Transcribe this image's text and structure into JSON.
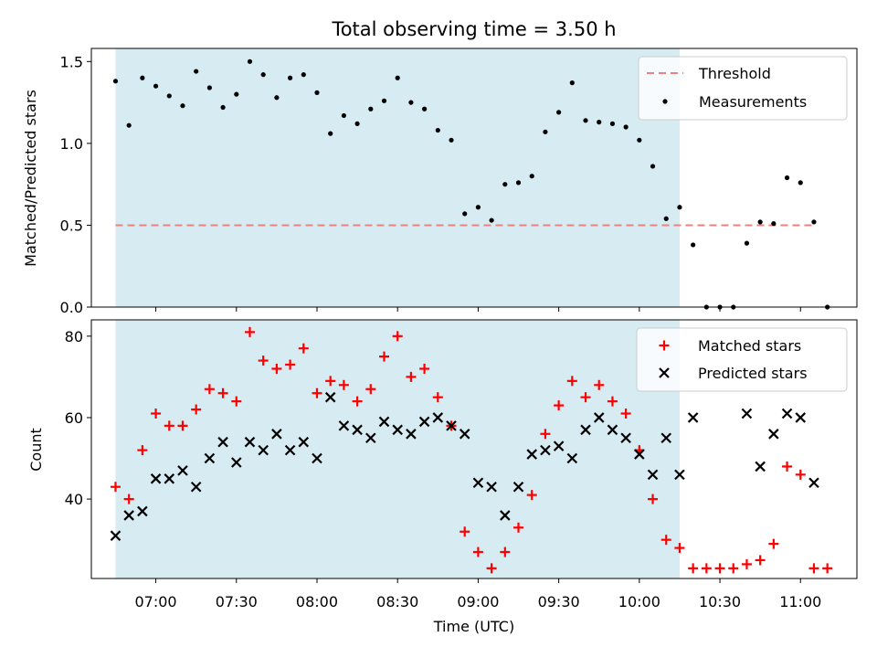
{
  "title": "Total observing time = 3.50 h",
  "chart_data": [
    {
      "type": "scatter",
      "ylabel": "Matched/Predicted stars",
      "ylim": [
        0,
        1.58
      ],
      "yticks": [
        "0.0",
        "0.5",
        "1.0",
        "1.5"
      ],
      "legend_position": "upper right",
      "shaded_span": [
        "06:45",
        "10:15"
      ],
      "threshold": {
        "name": "Threshold",
        "value": 0.5,
        "x_range": [
          "06:45",
          "11:05"
        ],
        "color": "#f08080"
      },
      "series": [
        {
          "name": "Measurements",
          "color": "#000000",
          "points": [
            [
              "06:45",
              1.38
            ],
            [
              "06:50",
              1.11
            ],
            [
              "06:55",
              1.4
            ],
            [
              "07:00",
              1.35
            ],
            [
              "07:05",
              1.29
            ],
            [
              "07:10",
              1.23
            ],
            [
              "07:15",
              1.44
            ],
            [
              "07:20",
              1.34
            ],
            [
              "07:25",
              1.22
            ],
            [
              "07:30",
              1.3
            ],
            [
              "07:35",
              1.5
            ],
            [
              "07:40",
              1.42
            ],
            [
              "07:45",
              1.28
            ],
            [
              "07:50",
              1.4
            ],
            [
              "07:55",
              1.42
            ],
            [
              "08:00",
              1.31
            ],
            [
              "08:05",
              1.06
            ],
            [
              "08:10",
              1.17
            ],
            [
              "08:15",
              1.12
            ],
            [
              "08:20",
              1.21
            ],
            [
              "08:25",
              1.26
            ],
            [
              "08:30",
              1.4
            ],
            [
              "08:35",
              1.25
            ],
            [
              "08:40",
              1.21
            ],
            [
              "08:45",
              1.08
            ],
            [
              "08:50",
              1.02
            ],
            [
              "08:55",
              0.57
            ],
            [
              "09:00",
              0.61
            ],
            [
              "09:05",
              0.53
            ],
            [
              "09:10",
              0.75
            ],
            [
              "09:15",
              0.76
            ],
            [
              "09:20",
              0.8
            ],
            [
              "09:25",
              1.07
            ],
            [
              "09:30",
              1.19
            ],
            [
              "09:35",
              1.37
            ],
            [
              "09:40",
              1.14
            ],
            [
              "09:45",
              1.13
            ],
            [
              "09:50",
              1.12
            ],
            [
              "09:55",
              1.1
            ],
            [
              "10:00",
              1.02
            ],
            [
              "10:05",
              0.86
            ],
            [
              "10:10",
              0.54
            ],
            [
              "10:15",
              0.61
            ],
            [
              "10:20",
              0.38
            ],
            [
              "10:25",
              0.0
            ],
            [
              "10:30",
              0.0
            ],
            [
              "10:35",
              0.0
            ],
            [
              "10:40",
              0.39
            ],
            [
              "10:45",
              0.52
            ],
            [
              "10:50",
              0.51
            ],
            [
              "10:55",
              0.79
            ],
            [
              "11:00",
              0.76
            ],
            [
              "11:05",
              0.52
            ],
            [
              "11:10",
              0.0
            ]
          ]
        }
      ]
    },
    {
      "type": "scatter",
      "xlabel": "Time (UTC)",
      "ylabel": "Count",
      "ylim": [
        20.5,
        84
      ],
      "yticks": [
        "40",
        "60",
        "80"
      ],
      "xticks": [
        "07:00",
        "07:30",
        "08:00",
        "08:30",
        "09:00",
        "09:30",
        "10:00",
        "10:30",
        "11:00"
      ],
      "xlim": [
        "06:36",
        "11:21"
      ],
      "legend_position": "upper right",
      "series": [
        {
          "name": "Matched stars",
          "color": "#ff0000",
          "marker": "+",
          "points": [
            [
              "06:45",
              43
            ],
            [
              "06:50",
              40
            ],
            [
              "06:55",
              52
            ],
            [
              "07:00",
              61
            ],
            [
              "07:05",
              58
            ],
            [
              "07:10",
              58
            ],
            [
              "07:15",
              62
            ],
            [
              "07:20",
              67
            ],
            [
              "07:25",
              66
            ],
            [
              "07:30",
              64
            ],
            [
              "07:35",
              81
            ],
            [
              "07:40",
              74
            ],
            [
              "07:45",
              72
            ],
            [
              "07:50",
              73
            ],
            [
              "07:55",
              77
            ],
            [
              "08:00",
              66
            ],
            [
              "08:05",
              69
            ],
            [
              "08:10",
              68
            ],
            [
              "08:15",
              64
            ],
            [
              "08:20",
              67
            ],
            [
              "08:25",
              75
            ],
            [
              "08:30",
              80
            ],
            [
              "08:35",
              70
            ],
            [
              "08:40",
              72
            ],
            [
              "08:45",
              65
            ],
            [
              "08:50",
              58
            ],
            [
              "08:55",
              32
            ],
            [
              "09:00",
              27
            ],
            [
              "09:05",
              23
            ],
            [
              "09:10",
              27
            ],
            [
              "09:15",
              33
            ],
            [
              "09:20",
              41
            ],
            [
              "09:25",
              56
            ],
            [
              "09:30",
              63
            ],
            [
              "09:35",
              69
            ],
            [
              "09:40",
              65
            ],
            [
              "09:45",
              68
            ],
            [
              "09:50",
              64
            ],
            [
              "09:55",
              61
            ],
            [
              "10:00",
              52
            ],
            [
              "10:05",
              40
            ],
            [
              "10:10",
              30
            ],
            [
              "10:15",
              28
            ],
            [
              "10:20",
              23
            ],
            [
              "10:25",
              23
            ],
            [
              "10:30",
              23
            ],
            [
              "10:35",
              23
            ],
            [
              "10:40",
              24
            ],
            [
              "10:45",
              25
            ],
            [
              "10:50",
              29
            ],
            [
              "10:55",
              48
            ],
            [
              "11:00",
              46
            ],
            [
              "11:05",
              23
            ],
            [
              "11:10",
              23
            ]
          ]
        },
        {
          "name": "Predicted stars",
          "color": "#000000",
          "marker": "x",
          "points": [
            [
              "06:45",
              31
            ],
            [
              "06:50",
              36
            ],
            [
              "06:55",
              37
            ],
            [
              "07:00",
              45
            ],
            [
              "07:05",
              45
            ],
            [
              "07:10",
              47
            ],
            [
              "07:15",
              43
            ],
            [
              "07:20",
              50
            ],
            [
              "07:25",
              54
            ],
            [
              "07:30",
              49
            ],
            [
              "07:35",
              54
            ],
            [
              "07:40",
              52
            ],
            [
              "07:45",
              56
            ],
            [
              "07:50",
              52
            ],
            [
              "07:55",
              54
            ],
            [
              "08:00",
              50
            ],
            [
              "08:05",
              65
            ],
            [
              "08:10",
              58
            ],
            [
              "08:15",
              57
            ],
            [
              "08:20",
              55
            ],
            [
              "08:25",
              59
            ],
            [
              "08:30",
              57
            ],
            [
              "08:35",
              56
            ],
            [
              "08:40",
              59
            ],
            [
              "08:45",
              60
            ],
            [
              "08:50",
              58
            ],
            [
              "08:55",
              56
            ],
            [
              "09:00",
              44
            ],
            [
              "09:05",
              43
            ],
            [
              "09:10",
              36
            ],
            [
              "09:15",
              43
            ],
            [
              "09:20",
              51
            ],
            [
              "09:25",
              52
            ],
            [
              "09:30",
              53
            ],
            [
              "09:35",
              50
            ],
            [
              "09:40",
              57
            ],
            [
              "09:45",
              60
            ],
            [
              "09:50",
              57
            ],
            [
              "09:55",
              55
            ],
            [
              "10:00",
              51
            ],
            [
              "10:05",
              46
            ],
            [
              "10:10",
              55
            ],
            [
              "10:15",
              46
            ],
            [
              "10:20",
              60
            ],
            [
              "10:40",
              61
            ],
            [
              "10:45",
              48
            ],
            [
              "10:50",
              56
            ],
            [
              "10:55",
              61
            ],
            [
              "11:00",
              60
            ],
            [
              "11:05",
              44
            ]
          ]
        }
      ]
    }
  ]
}
